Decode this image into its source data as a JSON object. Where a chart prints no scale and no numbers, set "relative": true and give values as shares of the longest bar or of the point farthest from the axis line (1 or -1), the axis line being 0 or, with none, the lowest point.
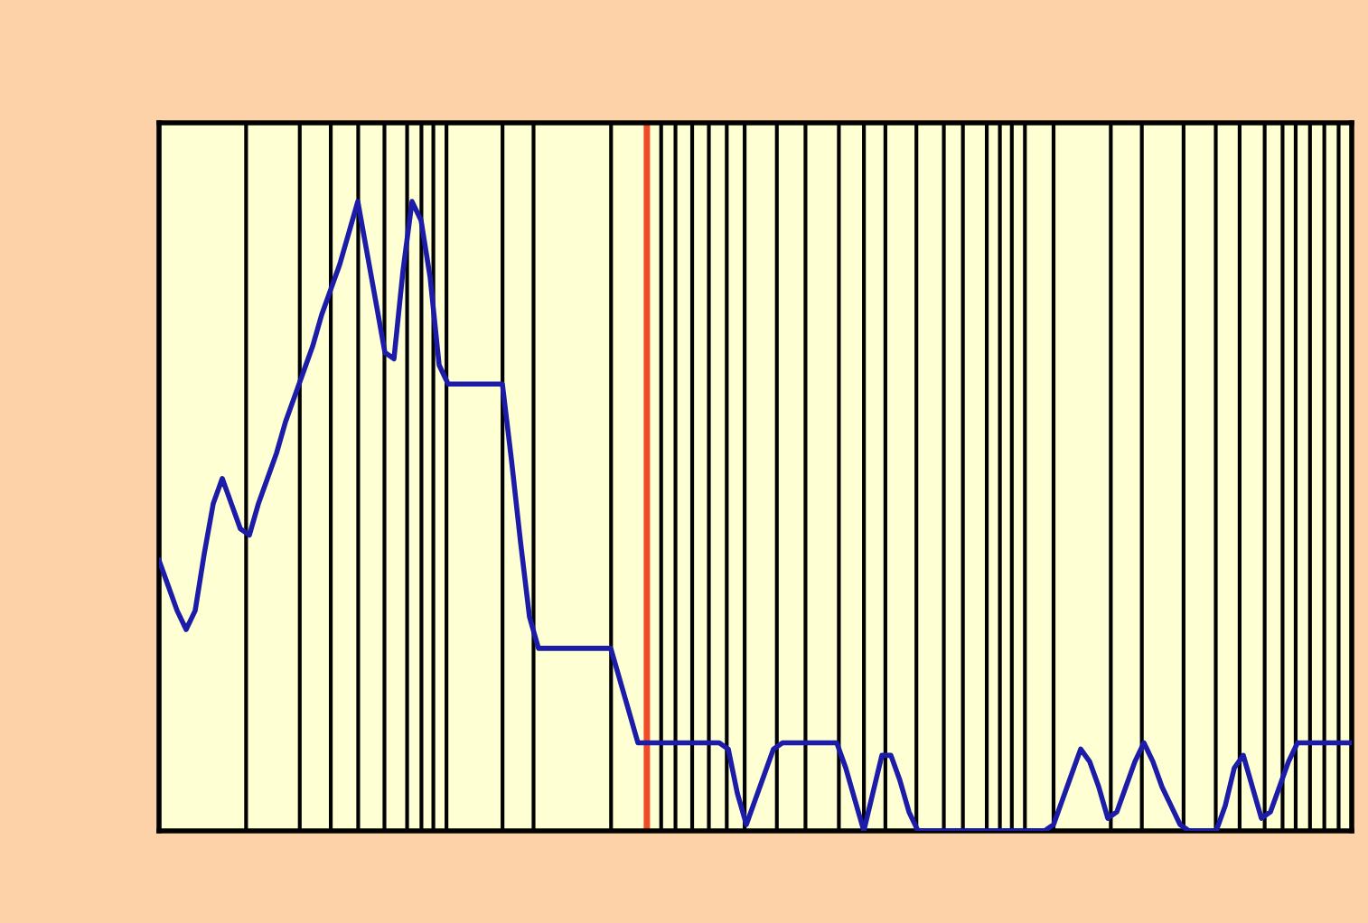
{
  "chart_data": {
    "type": "line",
    "relative": true,
    "tick_labels": false,
    "legend": false,
    "marker": "none",
    "line_style": "solid",
    "categories": [
      null,
      null,
      null,
      null,
      null,
      null,
      null,
      null,
      null,
      null,
      null,
      null,
      null,
      null,
      null,
      null,
      null,
      null,
      null,
      null,
      null,
      null,
      null,
      null,
      null,
      null,
      null,
      null,
      null,
      null,
      null,
      null,
      null,
      null,
      null,
      null,
      null,
      null,
      null,
      null,
      null,
      null,
      null,
      null,
      null,
      null,
      null,
      null,
      null,
      null,
      null,
      null,
      null,
      null,
      null,
      null,
      null,
      null,
      null,
      null,
      null,
      null,
      null,
      null,
      null,
      null,
      null,
      null,
      null,
      null,
      null,
      null,
      null,
      null,
      null,
      null,
      null,
      null,
      null,
      null,
      null,
      null,
      null,
      null,
      null,
      null,
      null,
      null,
      null,
      null,
      null,
      null,
      null,
      null,
      null,
      null,
      null,
      null,
      null,
      null,
      null,
      null,
      null,
      null,
      null,
      null,
      null,
      null,
      null,
      null,
      null,
      null,
      null,
      null,
      null,
      null,
      null,
      null,
      null,
      null,
      null,
      null,
      null,
      null,
      null,
      null,
      null,
      null,
      null,
      null,
      null,
      null,
      null
    ],
    "series": [
      {
        "color": "#1c1ca8",
        "values": [
          0.43,
          0.39,
          0.35,
          0.32,
          0.35,
          0.44,
          0.52,
          0.56,
          0.52,
          0.48,
          0.47,
          0.52,
          0.56,
          0.6,
          0.65,
          0.69,
          0.73,
          0.77,
          0.82,
          0.86,
          0.9,
          0.95,
          1,
          0.92,
          0.84,
          0.76,
          0.75,
          0.89,
          1,
          0.97,
          0.88,
          0.74,
          0.71,
          0.71,
          0.71,
          0.71,
          0.71,
          0.71,
          0.71,
          0.59,
          0.46,
          0.34,
          0.29,
          0.29,
          0.29,
          0.29,
          0.29,
          0.29,
          0.29,
          0.29,
          0.29,
          0.24,
          0.19,
          0.14,
          0.14,
          0.14,
          0.14,
          0.14,
          0.14,
          0.14,
          0.14,
          0.14,
          0.14,
          0.13,
          0.06,
          0.01,
          0.05,
          0.09,
          0.13,
          0.14,
          0.14,
          0.14,
          0.14,
          0.14,
          0.14,
          0.14,
          0.1,
          0.05,
          0,
          0.06,
          0.12,
          0.12,
          0.08,
          0.03,
          0,
          0,
          0,
          0,
          0,
          0,
          0,
          0,
          0,
          0,
          0,
          0,
          0,
          0,
          0,
          0.01,
          0.05,
          0.09,
          0.13,
          0.11,
          0.07,
          0.02,
          0.03,
          0.07,
          0.11,
          0.14,
          0.11,
          0.07,
          0.04,
          0.01,
          0,
          0,
          0,
          0,
          0.04,
          0.1,
          0.12,
          0.07,
          0.02,
          0.03,
          0.07,
          0.11,
          0.14,
          0.14,
          0.14,
          0.14,
          0.14,
          0.14,
          0.14
        ]
      }
    ]
  }
}
